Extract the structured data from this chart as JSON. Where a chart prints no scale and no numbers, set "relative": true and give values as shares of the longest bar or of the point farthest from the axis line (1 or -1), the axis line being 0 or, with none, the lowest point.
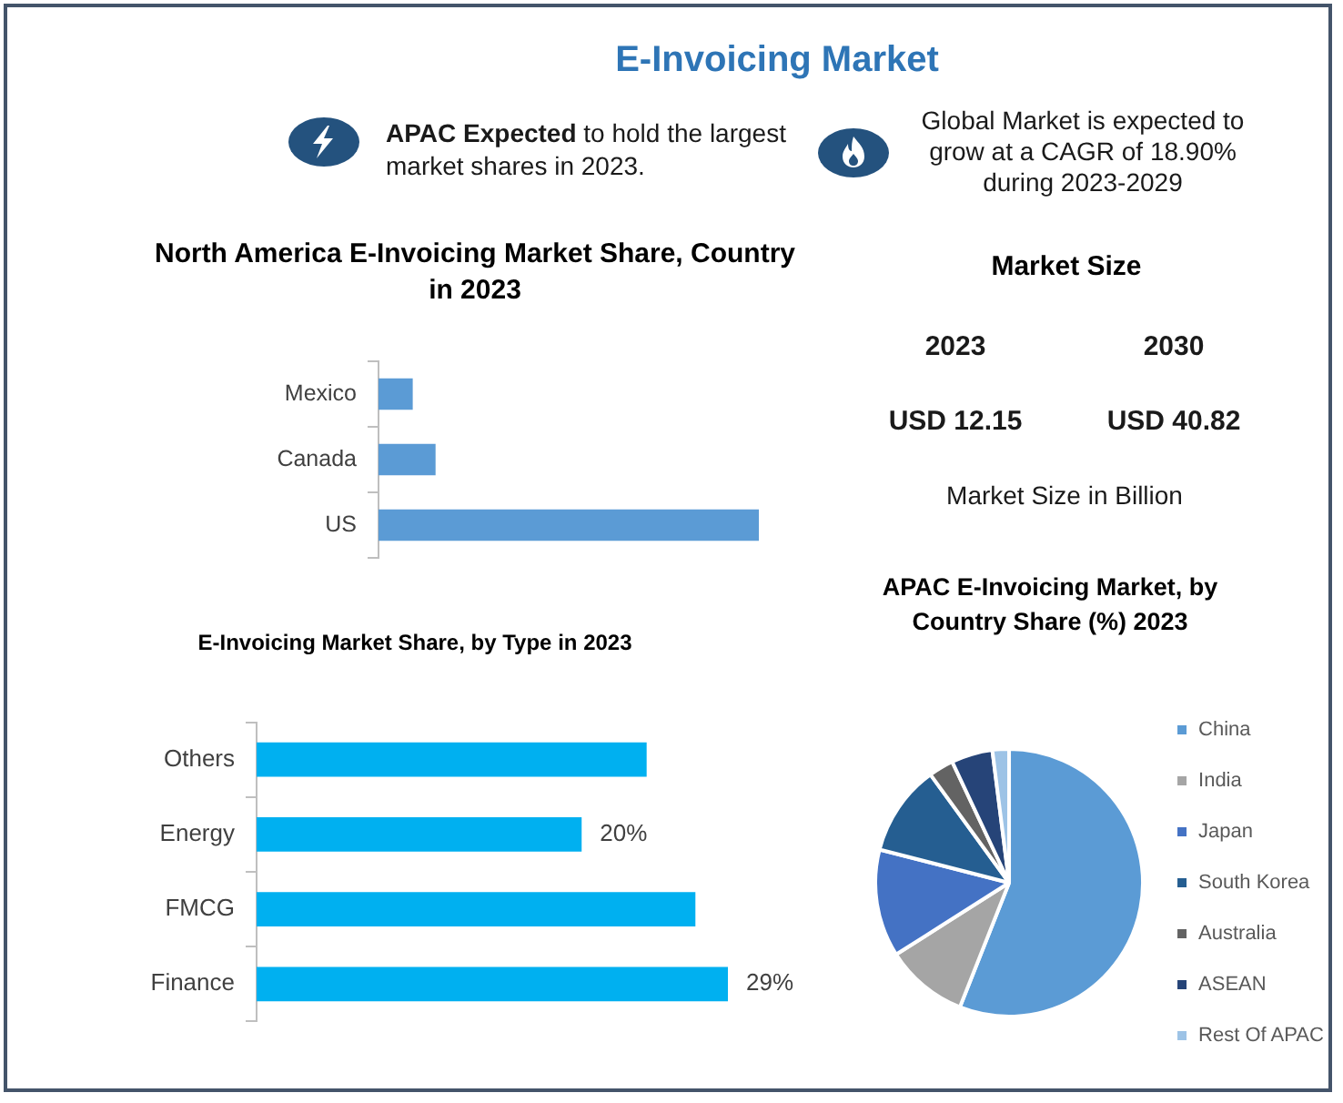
{
  "chart_data": [
    {
      "type": "other",
      "title": "E-Invoicing Market",
      "annotations": [
        "APAC Expected to hold the largest market shares in 2023.",
        "Global Market is expected to grow at a CAGR of 18.90% during 2023-2029"
      ]
    },
    {
      "type": "bar",
      "title": "North America E-Invoicing Market Share, Country in 2023",
      "orientation": "horizontal",
      "relative": true,
      "categories": [
        "Mexico",
        "Canada",
        "US"
      ],
      "values": [
        0.09,
        0.15,
        1
      ],
      "color": "#5b9bd5"
    },
    {
      "type": "other",
      "title": "Market Size",
      "annotations": [
        "2023",
        "2030",
        "USD 12.15",
        "USD 40.82",
        "Market Size in Billion"
      ]
    },
    {
      "type": "bar",
      "title": "E-Invoicing Market Share, by Type in 2023",
      "orientation": "horizontal",
      "categories": [
        "Others",
        "Energy",
        "FMCG",
        "Finance"
      ],
      "values": [
        24,
        20,
        27,
        29
      ],
      "value_labels": [
        null,
        "20%",
        null,
        "29%"
      ],
      "color": "#00b0f0",
      "tick_labels": "y"
    },
    {
      "type": "pie",
      "title": "APAC E-Invoicing Market, by Country Share (%) 2023",
      "categories": [
        "China",
        "India",
        "Japan",
        "South Korea",
        "Australia",
        "ASEAN",
        "Rest Of APAC"
      ],
      "values": [
        56,
        10,
        13,
        11,
        3,
        5,
        2
      ],
      "colors": [
        "#5b9bd5",
        "#a5a5a5",
        "#4472c4",
        "#255e91",
        "#636363",
        "#264478",
        "#9dc3e6"
      ],
      "legend": "right"
    }
  ]
}
